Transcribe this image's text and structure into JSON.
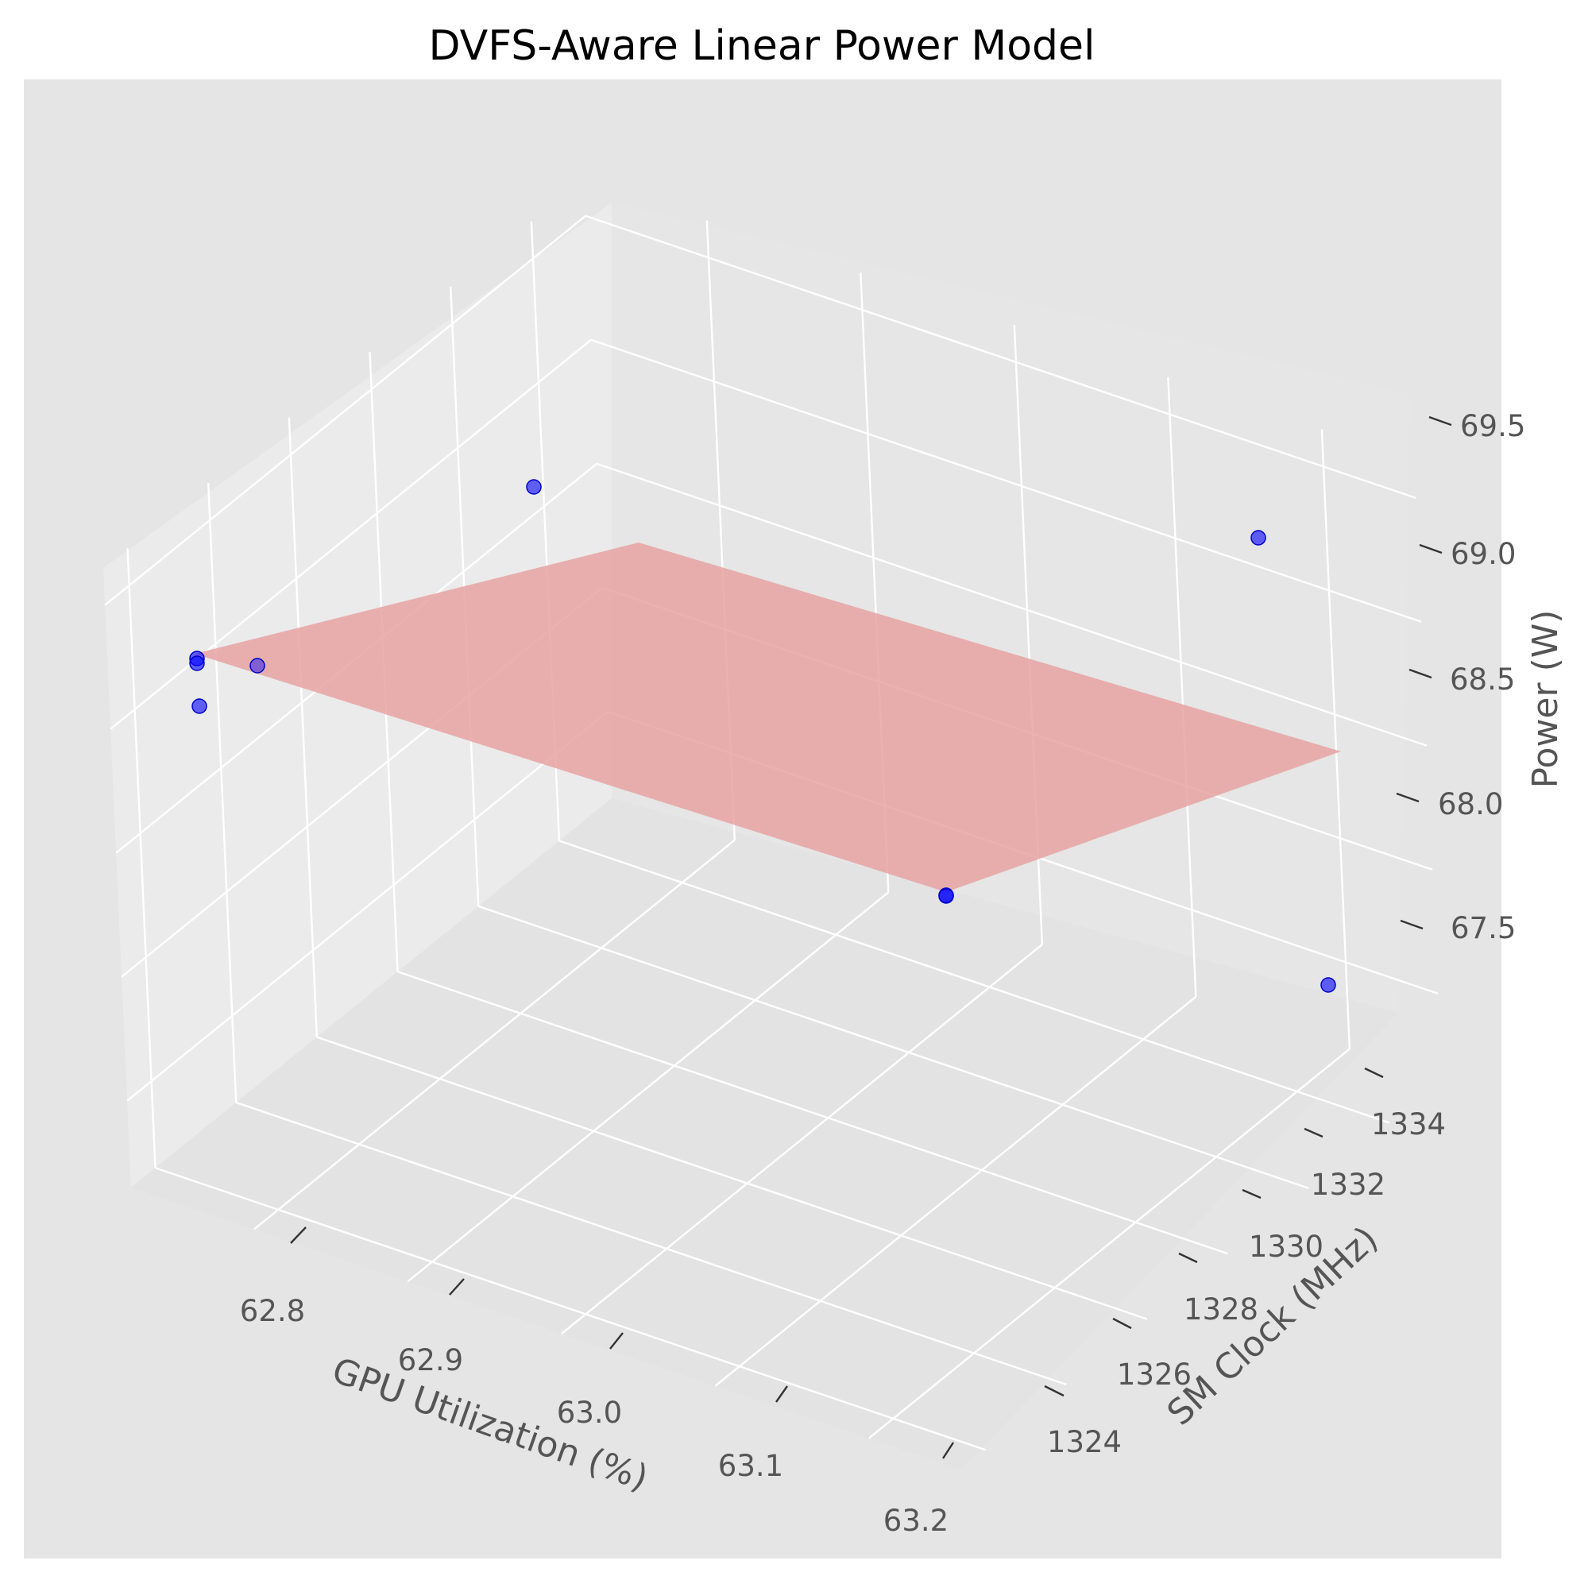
{
  "chart_data": {
    "type": "scatter",
    "projection": "3d",
    "title": "DVFS-Aware Linear Power Model",
    "xlabel": "GPU Utilization (%)",
    "ylabel": "SM Clock (MHz)",
    "zlabel": "Power (W)",
    "x_ticks": [
      "62.8",
      "62.9",
      "63.0",
      "63.1",
      "63.2"
    ],
    "y_ticks": [
      "1324",
      "1326",
      "1328",
      "1330",
      "1332",
      "1334"
    ],
    "z_ticks": [
      "67.5",
      "68.0",
      "68.5",
      "69.0",
      "69.5"
    ],
    "grid": true,
    "points_color": "#0000ff",
    "surface_color": "#e6a0a0",
    "points": [
      {
        "x": 62.92,
        "y": 1335.0,
        "z": 69.2
      },
      {
        "x": 62.72,
        "y": 1326.5,
        "z": 68.55
      },
      {
        "x": 62.72,
        "y": 1326.4,
        "z": 68.56
      },
      {
        "x": 62.72,
        "y": 1326.5,
        "z": 68.45
      },
      {
        "x": 62.76,
        "y": 1326.8,
        "z": 68.52
      },
      {
        "x": 63.18,
        "y": 1324.0,
        "z": 67.86
      },
      {
        "x": 63.18,
        "y": 1324.0,
        "z": 67.87
      },
      {
        "x": 63.25,
        "y": 1335.0,
        "z": 68.86
      },
      {
        "x": 63.26,
        "y": 1324.0,
        "z": 67.17
      }
    ],
    "fit_plane": {
      "x_range": [
        62.72,
        63.26
      ],
      "y_range": [
        1324,
        1335
      ]
    }
  }
}
